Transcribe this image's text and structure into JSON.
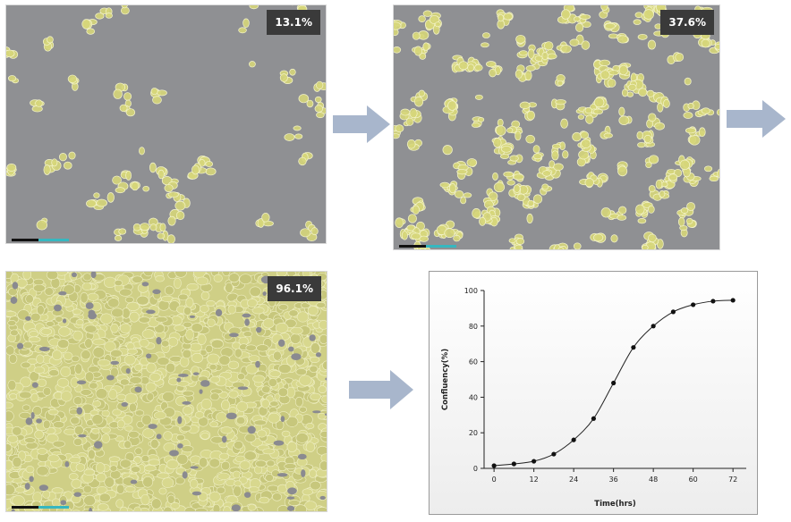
{
  "panels": [
    {
      "id": "p1",
      "confluence_label": "13.1%",
      "confluence": 0.131
    },
    {
      "id": "p2",
      "confluence_label": "37.6%",
      "confluence": 0.376
    },
    {
      "id": "p3",
      "confluence_label": "96.1%",
      "confluence": 0.961
    }
  ],
  "colors": {
    "background_gray": "#8f9093",
    "cell_yellow": "#d6d67a",
    "arrow": "#a8b6cc",
    "badge": "#3a3a3a",
    "scalebar_cyan": "#36b7c0"
  },
  "chart_data": {
    "type": "line",
    "title": "",
    "xlabel": "Time(hrs)",
    "ylabel": "Confluency(%)",
    "x_ticks": [
      0,
      12,
      24,
      36,
      48,
      60,
      72
    ],
    "y_ticks": [
      0,
      20,
      40,
      60,
      80,
      100
    ],
    "xlim": [
      -3,
      76
    ],
    "ylim": [
      0,
      100
    ],
    "grid": false,
    "x": [
      0,
      6,
      12,
      18,
      24,
      30,
      36,
      42,
      48,
      54,
      60,
      66,
      72
    ],
    "y": [
      1.5,
      2.5,
      4,
      8,
      16,
      28,
      48,
      68,
      80,
      88,
      92,
      94,
      94.5
    ]
  }
}
